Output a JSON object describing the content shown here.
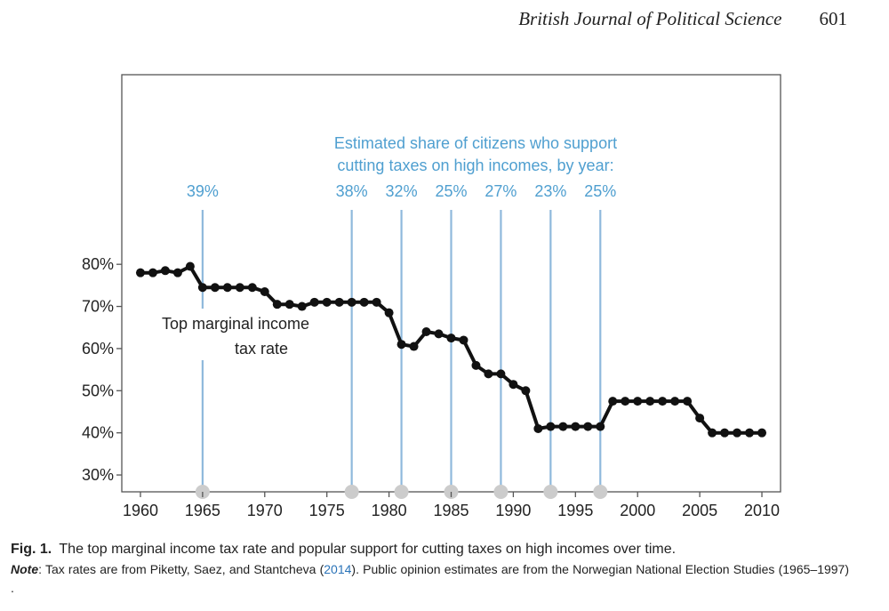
{
  "header": {
    "journal": "British Journal of Political Science",
    "page_number": "601"
  },
  "chart_data": {
    "type": "line",
    "x": [
      1960,
      1961,
      1962,
      1963,
      1964,
      1965,
      1966,
      1967,
      1968,
      1969,
      1970,
      1971,
      1972,
      1973,
      1974,
      1975,
      1976,
      1977,
      1978,
      1979,
      1980,
      1981,
      1982,
      1983,
      1984,
      1985,
      1986,
      1987,
      1988,
      1989,
      1990,
      1991,
      1992,
      1993,
      1994,
      1995,
      1996,
      1997,
      1998,
      1999,
      2000,
      2001,
      2002,
      2003,
      2004,
      2005,
      2006,
      2007,
      2008,
      2009,
      2010
    ],
    "series": [
      {
        "name": "Top marginal income tax rate",
        "values": [
          78,
          78,
          78.5,
          78,
          79.5,
          74.5,
          74.5,
          74.5,
          74.5,
          74.5,
          73.5,
          70.5,
          70.5,
          70,
          71,
          71,
          71,
          71,
          71,
          71,
          68.5,
          61,
          60.5,
          64,
          63.5,
          62.5,
          62,
          56,
          54,
          54,
          51.5,
          50,
          41,
          41.5,
          41.5,
          41.5,
          41.5,
          41.5,
          47.5,
          47.5,
          47.5,
          47.5,
          47.5,
          47.5,
          47.5,
          43.5,
          40,
          40,
          40,
          40,
          40
        ]
      }
    ],
    "series_label_lines": [
      "Top marginal income",
      "tax rate"
    ],
    "ylabel": "",
    "xlabel": "",
    "xlim": [
      1958.5,
      2011.5
    ],
    "ylim": [
      26,
      125
    ],
    "x_ticks": [
      1960,
      1965,
      1970,
      1975,
      1980,
      1985,
      1990,
      1995,
      2000,
      2005,
      2010
    ],
    "x_tick_labels": [
      "1960",
      "1965",
      "1970",
      "1975",
      "1980",
      "1985",
      "1990",
      "1995",
      "2000",
      "2005",
      "2010"
    ],
    "y_ticks": [
      30,
      40,
      50,
      60,
      70,
      80
    ],
    "y_tick_labels": [
      "30%",
      "40%",
      "50%",
      "60%",
      "70%",
      "80%"
    ],
    "survey_title_lines": [
      "Estimated share of citizens who support",
      "cutting taxes on high incomes, by year:"
    ],
    "surveys": [
      {
        "year": 1965,
        "label": "39%"
      },
      {
        "year": 1977,
        "label": "38%"
      },
      {
        "year": 1981,
        "label": "32%"
      },
      {
        "year": 1985,
        "label": "25%"
      },
      {
        "year": 1989,
        "label": "27%"
      },
      {
        "year": 1993,
        "label": "23%"
      },
      {
        "year": 1997,
        "label": "25%"
      }
    ],
    "colors": {
      "line": "#111111",
      "survey": "#8fb9dc",
      "survey_text": "#4f9fd0",
      "marker_bottom": "#cccccc",
      "frame": "#555555"
    }
  },
  "caption": {
    "fig_label": "Fig. 1.",
    "text": "The top marginal income tax rate and popular support for cutting taxes on high incomes over time.",
    "note_label": "Note",
    "note_part1": ": Tax rates are from Piketty, Saez, and Stantcheva (",
    "note_cite": "2014",
    "note_part2": "). Public opinion estimates are from the Norwegian National Election Studies (1965–1997) ."
  }
}
